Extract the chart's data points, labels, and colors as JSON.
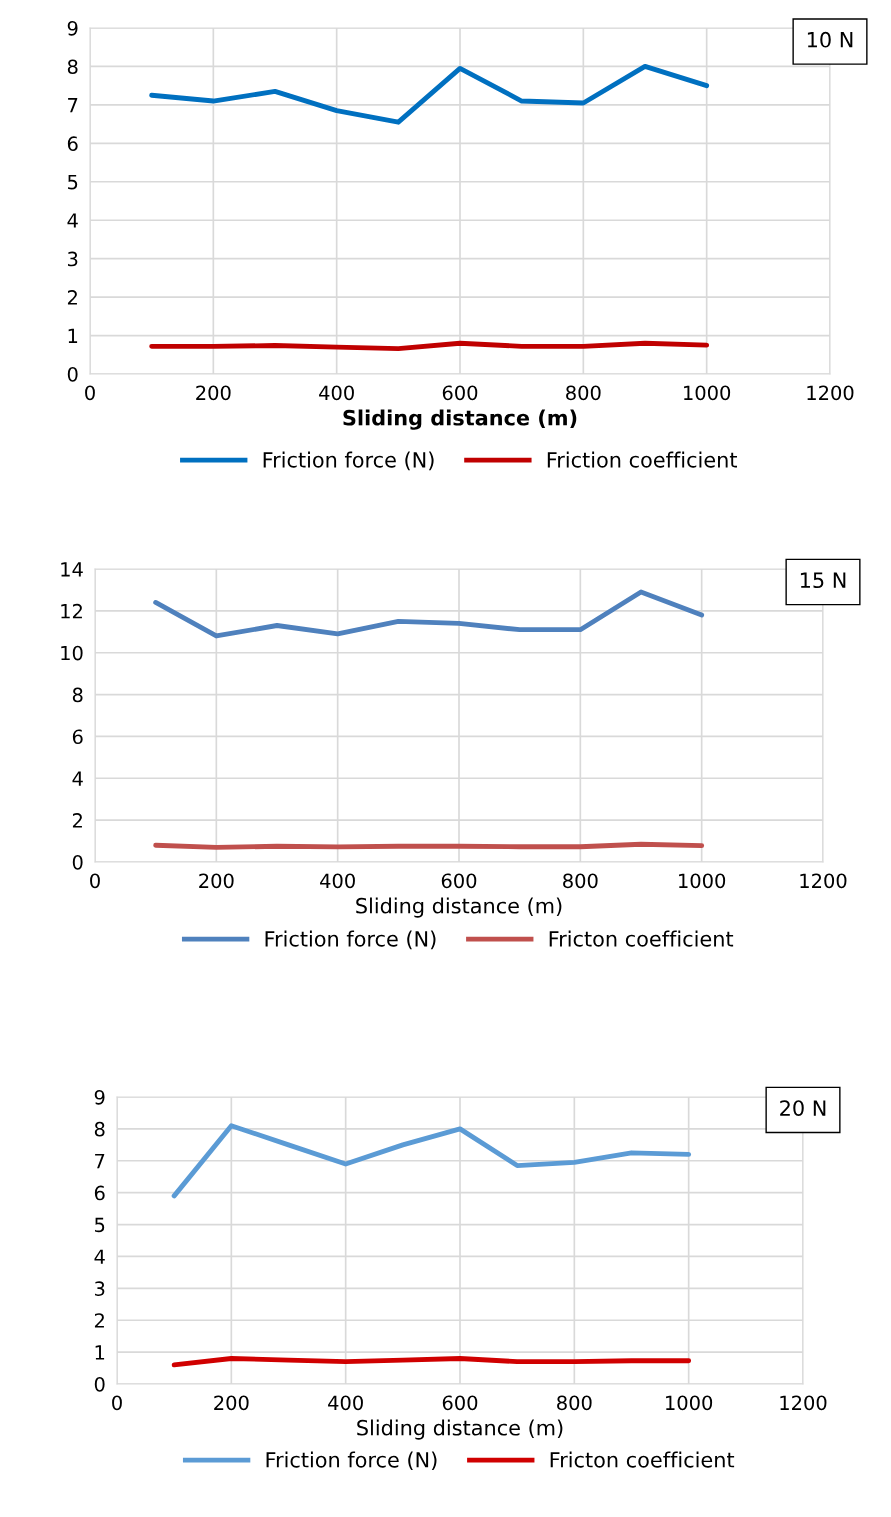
{
  "chart_data": [
    {
      "type": "line",
      "xlabel": "Sliding distance (m)",
      "annotations": [
        "10 N"
      ],
      "x": [
        100,
        200,
        300,
        400,
        500,
        600,
        700,
        800,
        900,
        1000
      ],
      "xlim": [
        0,
        1200
      ],
      "xticks": [
        0,
        200,
        400,
        600,
        800,
        1000,
        1200
      ],
      "ylim": [
        0,
        9
      ],
      "yticks": [
        0,
        1,
        2,
        3,
        4,
        5,
        6,
        7,
        8,
        9
      ],
      "grid": true,
      "legend": "bottom",
      "line_style": "solid",
      "series": [
        {
          "name": "Friction force (N)",
          "color": "#0070c0",
          "values": [
            7.25,
            7.1,
            7.35,
            6.85,
            6.55,
            7.95,
            7.1,
            7.05,
            8.0,
            7.5
          ]
        },
        {
          "name": "Friction coefficient",
          "color": "#c00000",
          "values": [
            0.72,
            0.72,
            0.74,
            0.7,
            0.66,
            0.8,
            0.72,
            0.72,
            0.8,
            0.75
          ]
        }
      ]
    },
    {
      "type": "line",
      "xlabel": "Sliding distance (m)",
      "annotations": [
        "15 N"
      ],
      "x": [
        100,
        200,
        300,
        400,
        500,
        600,
        700,
        800,
        900,
        1000
      ],
      "xlim": [
        0,
        1200
      ],
      "xticks": [
        0,
        200,
        400,
        600,
        800,
        1000,
        1200
      ],
      "ylim": [
        0,
        14
      ],
      "yticks": [
        0,
        2,
        4,
        6,
        8,
        10,
        12,
        14
      ],
      "grid": true,
      "legend": "bottom",
      "line_style": "solid",
      "series": [
        {
          "name": "Friction force (N)",
          "color": "#4f81bd",
          "values": [
            12.4,
            10.8,
            11.3,
            10.9,
            11.5,
            11.4,
            11.1,
            11.1,
            12.9,
            11.8
          ]
        },
        {
          "name": "Fricton coefficient",
          "color": "#c0504d",
          "values": [
            0.8,
            0.7,
            0.75,
            0.72,
            0.75,
            0.75,
            0.73,
            0.73,
            0.85,
            0.78
          ]
        }
      ]
    },
    {
      "type": "line",
      "xlabel": "Sliding distance (m)",
      "annotations": [
        "20 N"
      ],
      "x": [
        100,
        200,
        300,
        400,
        500,
        600,
        700,
        800,
        900,
        1000
      ],
      "xlim": [
        0,
        1200
      ],
      "xticks": [
        0,
        200,
        400,
        600,
        800,
        1000,
        1200
      ],
      "ylim": [
        0,
        9
      ],
      "yticks": [
        0,
        1,
        2,
        3,
        4,
        5,
        6,
        7,
        8,
        9
      ],
      "grid": true,
      "legend": "bottom",
      "line_style": "solid",
      "series": [
        {
          "name": "Friction force (N)",
          "color": "#5b9bd5",
          "values": [
            5.9,
            8.1,
            7.5,
            6.9,
            7.5,
            8.0,
            6.85,
            6.95,
            7.25,
            7.2
          ]
        },
        {
          "name": "Fricton coefficient",
          "color": "#d00000",
          "values": [
            0.6,
            0.8,
            0.75,
            0.7,
            0.75,
            0.8,
            0.7,
            0.7,
            0.73,
            0.73
          ]
        }
      ]
    }
  ]
}
